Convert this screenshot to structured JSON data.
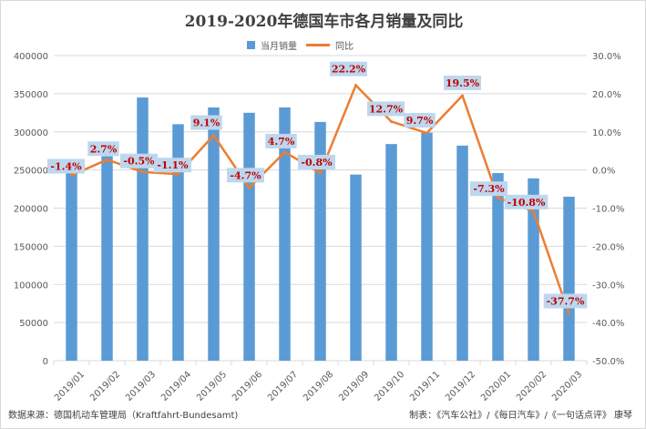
{
  "chart_data": {
    "type": "bar",
    "title": "2019-2020年德国车市各月销量及同比",
    "categories": [
      "2019/01",
      "2019/02",
      "2019/03",
      "2019/04",
      "2019/05",
      "2019/06",
      "2019/07",
      "2019/08",
      "2019/09",
      "2019/10",
      "2019/11",
      "2019/12",
      "2020/01",
      "2020/02",
      "2020/03"
    ],
    "series": [
      {
        "name": "当月销量",
        "type": "bar",
        "axis": "left",
        "color": "#5b9bd5",
        "values": [
          251000,
          268000,
          345000,
          310000,
          332000,
          325000,
          332000,
          313000,
          244000,
          284000,
          299000,
          282000,
          246000,
          239000,
          215000
        ]
      },
      {
        "name": "同比",
        "type": "line",
        "axis": "right",
        "color": "#ed7d31",
        "values": [
          -1.4,
          2.7,
          -0.5,
          -1.1,
          9.1,
          -4.7,
          4.7,
          -0.8,
          22.2,
          12.7,
          9.7,
          19.5,
          -7.3,
          -10.8,
          -37.7
        ],
        "labels": [
          "-1.4%",
          "2.7%",
          "-0.5%",
          "-1.1%",
          "9.1%",
          "-4.7%",
          "4.7%",
          "-0.8%",
          "22.2%",
          "12.7%",
          "9.7%",
          "19.5%",
          "-7.3%",
          "-10.8%",
          "-37.7%"
        ]
      }
    ],
    "y_left": {
      "min": 0,
      "max": 400000,
      "step": 50000,
      "ticks": [
        "0",
        "50000",
        "100000",
        "150000",
        "200000",
        "250000",
        "300000",
        "350000",
        "400000"
      ]
    },
    "y_right": {
      "min": -50,
      "max": 30,
      "step": 10,
      "ticks": [
        "-50.0%",
        "-40.0%",
        "-30.0%",
        "-20.0%",
        "-10.0%",
        "0.0%",
        "10.0%",
        "20.0%",
        "30.0%"
      ]
    },
    "grid": true,
    "legend_position": "top"
  },
  "source_text": "数据来源：德国机动车管理局（Kraftfahrt-Bundesamt)",
  "credit_text": "制表：《汽车公社》/《每日汽车》/《一句话点评》 康琴"
}
